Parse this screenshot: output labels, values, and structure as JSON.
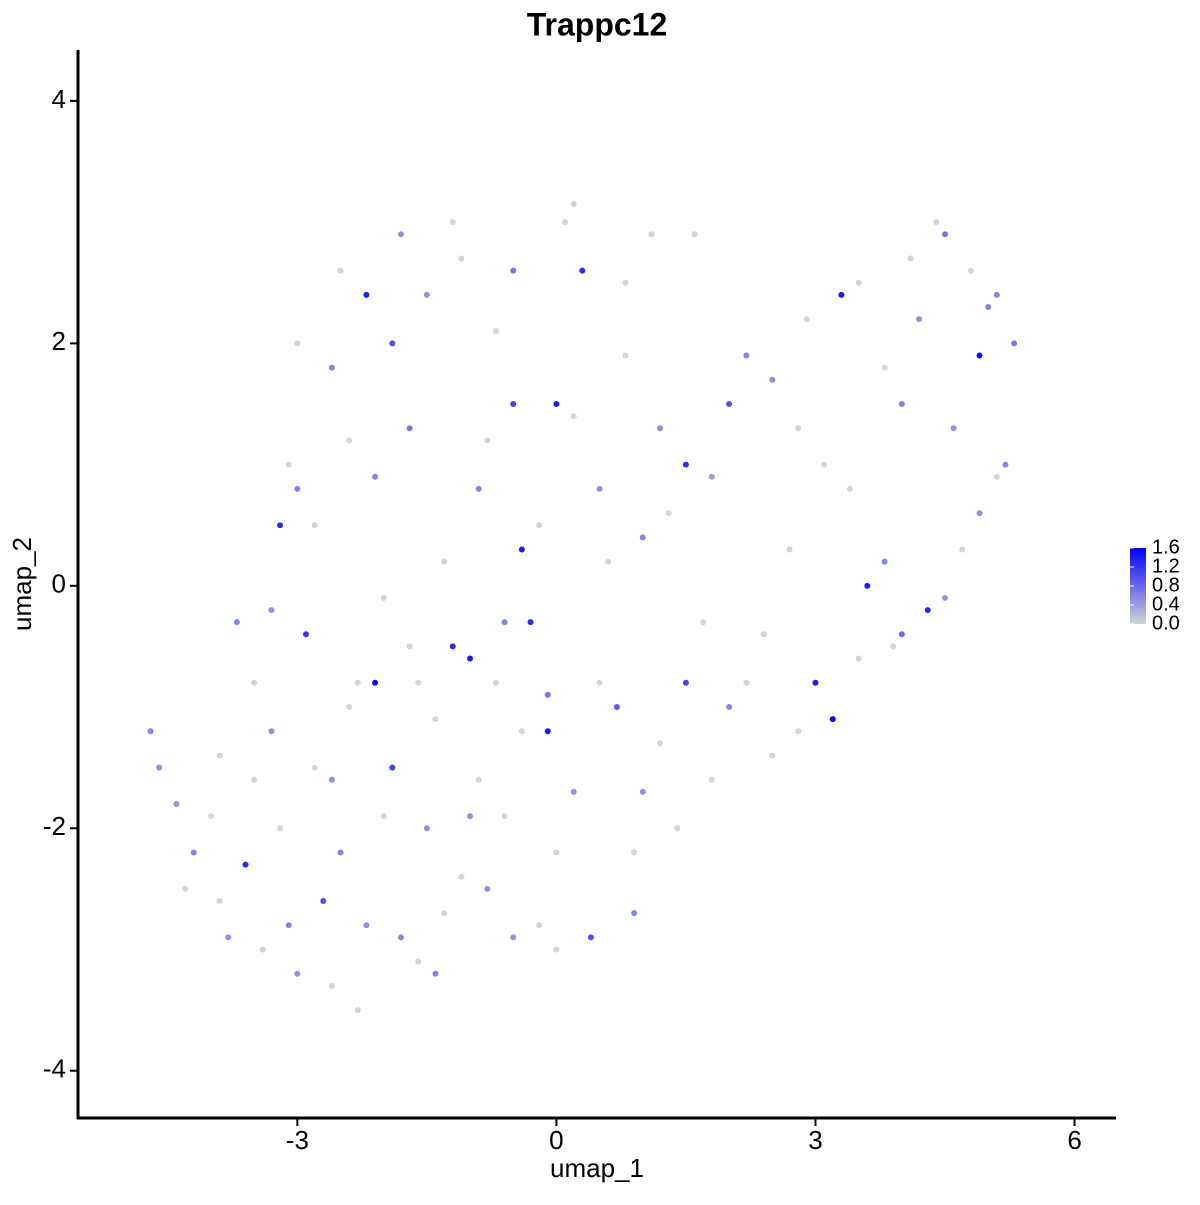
{
  "chart_data": {
    "type": "scatter",
    "title": "Trappc12",
    "x_label": "umap_1",
    "y_label": "umap_2",
    "xlim": [
      -5.54,
      6.48
    ],
    "ylim": [
      -4.39,
      4.42
    ],
    "xticks": [
      -3,
      0,
      3,
      6
    ],
    "yticks": [
      -4,
      -2,
      0,
      2,
      4
    ],
    "color_low": "#d3d3d3",
    "color_high": "#0000ff",
    "clim": [
      0,
      1.6
    ],
    "colorbar_ticks": [
      {
        "value": 0,
        "label": "0.0"
      },
      {
        "value": 0.4,
        "label": "0.4"
      },
      {
        "value": 0.8,
        "label": "0.8"
      },
      {
        "value": 1.2,
        "label": "1.2"
      },
      {
        "value": 1.6,
        "label": "1.6"
      }
    ],
    "x": [
      -4.7,
      -4.6,
      -4.4,
      -4.2,
      -4.0,
      -3.9,
      -3.8,
      -3.6,
      -3.5,
      -3.4,
      -3.3,
      -3.2,
      -3.1,
      -3.0,
      -2.9,
      -2.8,
      -2.7,
      -2.6,
      -2.5,
      -2.4,
      -2.3,
      -2.2,
      -2.1,
      -2.0,
      -1.9,
      -1.8,
      -1.7,
      -1.6,
      -1.5,
      -1.4,
      -1.3,
      -1.2,
      -1.1,
      -1.0,
      -0.9,
      -0.8,
      -0.7,
      -0.6,
      -0.5,
      -0.4,
      -0.3,
      -0.2,
      -0.1,
      0.0,
      0.2,
      0.4,
      0.5,
      0.7,
      0.9,
      1.0,
      1.2,
      1.4,
      1.5,
      1.8,
      2.0,
      2.2,
      2.5,
      2.8,
      3.0,
      3.2,
      3.5,
      3.6,
      3.8,
      4.0,
      4.3,
      4.5,
      4.7,
      4.9,
      5.1,
      5.2,
      5.3,
      5.0,
      4.8,
      4.5,
      4.4,
      4.2,
      4.0,
      3.8,
      3.5,
      3.3,
      3.1,
      2.8,
      2.5,
      2.2,
      2.0,
      1.8,
      1.5,
      1.2,
      1.0,
      0.8,
      0.5,
      0.2,
      0.0,
      -0.2,
      -0.4,
      -0.5,
      -0.7,
      -0.9,
      -1.1,
      -1.3,
      -1.5,
      -1.7,
      -1.9,
      -2.1,
      -2.2,
      -2.4,
      -2.6,
      -2.8,
      -3.0,
      -3.2,
      -3.3,
      -3.5,
      -3.7,
      0.3,
      0.1,
      0.2,
      -0.5,
      -1.2,
      -1.8,
      -2.5,
      -3.0,
      -3.1,
      1.1,
      1.6,
      0.8,
      -0.1,
      0.6,
      1.3,
      2.7,
      3.4,
      4.6,
      4.9,
      3.9,
      2.4,
      1.7,
      -0.6,
      -1.6,
      -2.6,
      -3.9,
      -4.3,
      -2.3,
      -1.4,
      0.0,
      0.9,
      -1.0,
      -2.0,
      -0.8,
      2.9,
      4.1,
      5.1
    ],
    "y": [
      -1.2,
      -1.5,
      -1.8,
      -2.2,
      -1.9,
      -2.6,
      -2.9,
      -2.3,
      -1.6,
      -3.0,
      -1.2,
      -2.0,
      -2.8,
      -3.2,
      -0.4,
      -1.5,
      -2.6,
      -3.3,
      -2.2,
      -1.0,
      -0.8,
      -2.8,
      -0.8,
      -1.9,
      -1.5,
      -2.9,
      -0.5,
      -3.1,
      -2.0,
      -1.1,
      -2.7,
      -0.5,
      -2.4,
      -0.6,
      -1.6,
      -2.5,
      -0.8,
      -1.9,
      -2.9,
      -1.2,
      -0.3,
      -2.8,
      -1.2,
      -2.2,
      -1.7,
      -2.9,
      -0.8,
      -1.0,
      -2.2,
      -1.7,
      -1.3,
      -2.0,
      -0.8,
      -1.6,
      -1.0,
      -0.8,
      -1.4,
      -1.2,
      -0.8,
      -1.1,
      -0.6,
      0.0,
      0.2,
      -0.4,
      -0.2,
      -0.1,
      0.3,
      0.6,
      0.9,
      1.0,
      2.0,
      2.3,
      2.6,
      2.9,
      3.0,
      2.2,
      1.5,
      1.8,
      2.5,
      2.4,
      1.0,
      1.3,
      1.7,
      1.9,
      1.5,
      0.9,
      1.0,
      1.3,
      0.4,
      1.9,
      0.8,
      1.4,
      1.5,
      0.5,
      0.3,
      1.5,
      2.1,
      0.8,
      2.7,
      0.2,
      2.4,
      1.3,
      2.0,
      0.9,
      2.4,
      1.2,
      1.8,
      0.5,
      0.8,
      0.5,
      -0.2,
      -0.8,
      -0.3,
      2.6,
      3.0,
      3.15,
      2.6,
      3.0,
      2.9,
      2.6,
      2.0,
      1.0,
      2.9,
      2.9,
      2.5,
      -0.9,
      0.2,
      0.6,
      0.3,
      0.8,
      1.3,
      1.9,
      -0.5,
      -0.4,
      -0.3,
      -0.3,
      -0.8,
      -1.6,
      -1.4,
      -2.5,
      -3.5,
      -3.2,
      -3.0,
      -2.7,
      -1.9,
      -0.1,
      1.2,
      2.2,
      2.7,
      2.4
    ],
    "values": [
      0.6,
      0.5,
      0.5,
      0.6,
      0,
      0,
      0.5,
      1.3,
      0,
      0,
      0.5,
      0,
      0.6,
      0.5,
      1.2,
      0,
      1.0,
      0,
      0.6,
      0,
      0,
      0.5,
      1.5,
      0,
      1.1,
      0.6,
      0,
      0,
      0.5,
      0,
      0,
      1.3,
      0,
      1.4,
      0,
      0.5,
      0,
      0,
      0.5,
      0,
      1.3,
      0,
      1.4,
      0,
      0.5,
      1.0,
      0,
      0.9,
      0,
      0.5,
      0,
      0,
      1.1,
      0,
      0.6,
      0,
      0,
      0,
      1.4,
      1.6,
      0,
      1.4,
      0.6,
      0.8,
      1.3,
      0.5,
      0,
      0.5,
      0,
      0.6,
      0.7,
      0.6,
      0,
      0.7,
      0,
      0.5,
      0.6,
      0,
      0,
      1.4,
      0,
      0,
      0.5,
      0.6,
      1.0,
      0.4,
      1.3,
      0.5,
      0.6,
      0,
      0.5,
      0,
      1.4,
      0,
      1.4,
      1.1,
      0,
      0.6,
      0,
      0,
      0.5,
      0.7,
      1.0,
      0.6,
      1.4,
      0,
      0.6,
      0,
      0.6,
      1.3,
      0.5,
      0,
      0.6,
      1.3,
      0,
      0,
      0.7,
      0,
      0.5,
      0,
      0,
      0,
      0,
      0,
      0,
      0.7,
      0,
      0,
      0,
      0,
      0.5,
      1.5,
      0,
      0,
      0,
      0.6,
      0,
      0.5,
      0,
      0,
      0,
      0.6,
      0,
      0.6,
      0.5,
      0,
      0,
      0,
      0,
      0.6
    ]
  }
}
